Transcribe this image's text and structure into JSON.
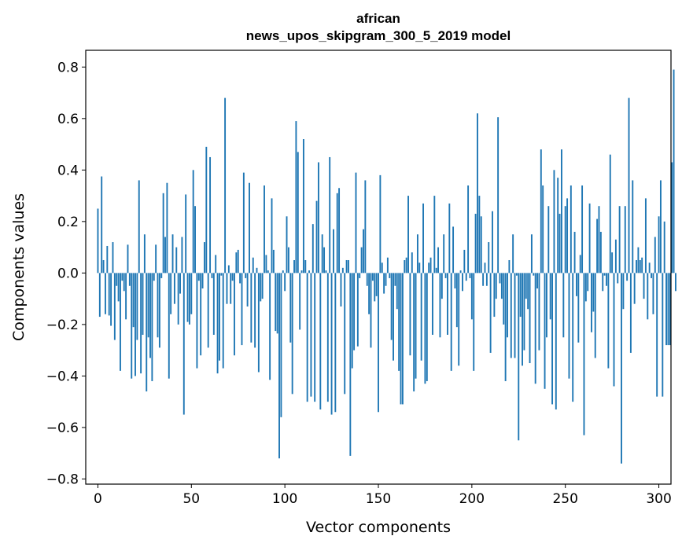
{
  "chart_data": {
    "type": "bar",
    "title_line1": "african",
    "title_line2": "news_upos_skipgram_300_5_2019 model",
    "xlabel": "Vector components",
    "ylabel": "Components values",
    "xlim": [
      -6.5,
      306.5
    ],
    "ylim": [
      -0.82,
      0.865
    ],
    "xticks": [
      0,
      50,
      100,
      150,
      200,
      250,
      300
    ],
    "xtick_labels": [
      "0",
      "50",
      "100",
      "150",
      "200",
      "250",
      "300"
    ],
    "yticks": [
      0.8,
      0.6,
      0.4,
      0.2,
      0.0,
      -0.2,
      -0.4,
      -0.6,
      -0.8
    ],
    "ytick_labels": [
      "0.8",
      "0.6",
      "0.4",
      "0.2",
      "0.0",
      "−0.2",
      "−0.4",
      "−0.6",
      "−0.8"
    ],
    "bar_color": "#1f77b4",
    "grid": false,
    "values": [
      0.25,
      -0.17,
      0.375,
      0.05,
      -0.16,
      0.105,
      -0.165,
      -0.205,
      0.12,
      -0.26,
      -0.05,
      -0.11,
      -0.38,
      -0.03,
      -0.07,
      -0.18,
      0.11,
      -0.05,
      -0.41,
      -0.21,
      -0.4,
      -0.26,
      0.36,
      -0.39,
      -0.24,
      0.15,
      -0.46,
      -0.25,
      -0.33,
      -0.42,
      -0.03,
      0.11,
      -0.25,
      -0.29,
      -0.02,
      0.31,
      0.14,
      0.35,
      -0.41,
      -0.16,
      0.15,
      -0.12,
      0.1,
      -0.2,
      -0.08,
      0.14,
      -0.55,
      0.305,
      -0.19,
      -0.2,
      -0.16,
      0.4,
      0.26,
      -0.37,
      -0.03,
      -0.32,
      -0.06,
      0.12,
      0.49,
      -0.29,
      0.45,
      -0.02,
      -0.24,
      0.07,
      -0.39,
      -0.34,
      -0.01,
      -0.37,
      0.68,
      -0.12,
      0.03,
      -0.12,
      -0.03,
      -0.32,
      0.08,
      0.09,
      -0.04,
      -0.28,
      0.39,
      -0.02,
      -0.13,
      0.35,
      -0.27,
      0.06,
      -0.29,
      0.02,
      -0.385,
      -0.11,
      -0.1,
      0.34,
      0.07,
      0.01,
      -0.415,
      0.29,
      0.09,
      -0.225,
      -0.235,
      -0.72,
      -0.56,
      0.01,
      -0.07,
      0.22,
      0.1,
      -0.27,
      -0.47,
      0.05,
      0.59,
      0.47,
      -0.22,
      0.01,
      0.52,
      0.05,
      -0.5,
      0.01,
      -0.48,
      0.19,
      -0.5,
      0.28,
      0.43,
      -0.53,
      0.15,
      0.1,
      0.01,
      -0.5,
      0.45,
      -0.55,
      0.17,
      -0.54,
      0.31,
      0.33,
      -0.13,
      0.02,
      -0.47,
      0.05,
      0.05,
      -0.71,
      -0.37,
      -0.3,
      0.39,
      -0.285,
      -0.02,
      0.1,
      0.17,
      0.36,
      -0.05,
      -0.16,
      -0.29,
      -0.03,
      -0.11,
      -0.09,
      -0.54,
      0.38,
      0.04,
      -0.08,
      -0.05,
      0.06,
      -0.02,
      -0.26,
      -0.34,
      -0.05,
      -0.14,
      -0.38,
      -0.51,
      -0.51,
      0.05,
      0.06,
      0.3,
      -0.32,
      0.08,
      -0.46,
      -0.41,
      0.15,
      0.04,
      -0.34,
      0.27,
      -0.43,
      -0.42,
      0.04,
      0.06,
      -0.24,
      0.3,
      0.02,
      0.1,
      -0.25,
      -0.1,
      0.15,
      -0.02,
      -0.24,
      0.27,
      -0.38,
      0.18,
      -0.06,
      -0.21,
      -0.36,
      0.01,
      -0.07,
      0.09,
      -0.03,
      0.34,
      -0.02,
      -0.18,
      -0.38,
      0.23,
      0.62,
      0.3,
      0.22,
      -0.05,
      0.04,
      -0.05,
      0.12,
      -0.31,
      0.24,
      -0.17,
      -0.1,
      0.605,
      -0.04,
      -0.1,
      -0.2,
      -0.42,
      -0.25,
      0.05,
      -0.33,
      0.15,
      -0.33,
      -0.01,
      -0.65,
      -0.17,
      -0.36,
      -0.3,
      -0.1,
      -0.14,
      -0.35,
      0.15,
      -0.01,
      -0.43,
      -0.06,
      -0.3,
      0.48,
      0.34,
      -0.45,
      -0.25,
      0.26,
      -0.18,
      -0.51,
      0.4,
      -0.53,
      0.37,
      0.23,
      0.48,
      -0.25,
      0.26,
      0.29,
      -0.41,
      0.34,
      -0.5,
      0.16,
      -0.09,
      -0.27,
      0.07,
      0.34,
      -0.63,
      -0.11,
      -0.07,
      0.27,
      -0.23,
      -0.15,
      -0.33,
      0.21,
      0.26,
      0.16,
      -0.07,
      -0.01,
      -0.05,
      -0.37,
      0.46,
      0.08,
      -0.44,
      0.13,
      -0.04,
      0.26,
      -0.74,
      -0.14,
      0.26,
      -0.03,
      0.68,
      -0.31,
      0.36,
      -0.12,
      0.05,
      0.1,
      0.05,
      0.06,
      -0.1,
      0.29,
      -0.18,
      0.04,
      -0.02,
      -0.16,
      0.14,
      -0.48,
      0.22,
      0.36,
      -0.48,
      0.2,
      -0.28,
      -0.28,
      -0.28,
      0.43,
      0.79,
      -0.07
    ]
  }
}
